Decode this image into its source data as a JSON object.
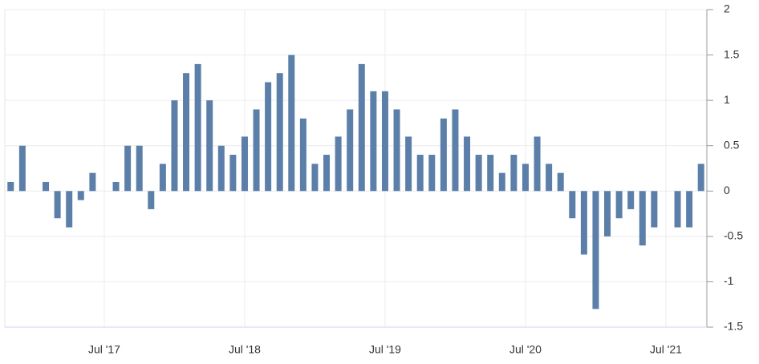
{
  "chart_data": {
    "type": "bar",
    "categories": [
      null,
      null,
      null,
      null,
      null,
      null,
      null,
      null,
      "Jul '17",
      null,
      null,
      null,
      null,
      null,
      null,
      null,
      null,
      null,
      null,
      null,
      "Jul '18",
      null,
      null,
      null,
      null,
      null,
      null,
      null,
      null,
      null,
      null,
      null,
      "Jul '19",
      null,
      null,
      null,
      null,
      null,
      null,
      null,
      null,
      null,
      null,
      null,
      "Jul '20",
      null,
      null,
      null,
      null,
      null,
      null,
      null,
      null,
      null,
      null,
      null,
      "Jul '21",
      null,
      null,
      null
    ],
    "values": [
      0.1,
      0.5,
      0,
      0.1,
      -0.3,
      -0.4,
      -0.1,
      0.2,
      0,
      0.1,
      0.5,
      0.5,
      -0.2,
      0.3,
      1.0,
      1.3,
      1.4,
      1.0,
      0.5,
      0.4,
      0.6,
      0.9,
      1.2,
      1.3,
      1.5,
      0.8,
      0.3,
      0.4,
      0.6,
      0.9,
      1.4,
      1.1,
      1.1,
      0.9,
      0.6,
      0.4,
      0.4,
      0.8,
      0.9,
      0.6,
      0.4,
      0.4,
      0.2,
      0.4,
      0.3,
      0.6,
      0.3,
      0.2,
      -0.3,
      -0.7,
      -1.3,
      -0.5,
      -0.3,
      -0.2,
      -0.6,
      -0.4,
      0,
      -0.4,
      -0.4,
      0.3
    ],
    "color": "#5b7fa9",
    "ylim": [
      -1.5,
      2
    ],
    "yticks": [
      -1.5,
      -1,
      -0.5,
      0,
      0.5,
      1,
      1.5,
      2
    ],
    "grid": true
  }
}
